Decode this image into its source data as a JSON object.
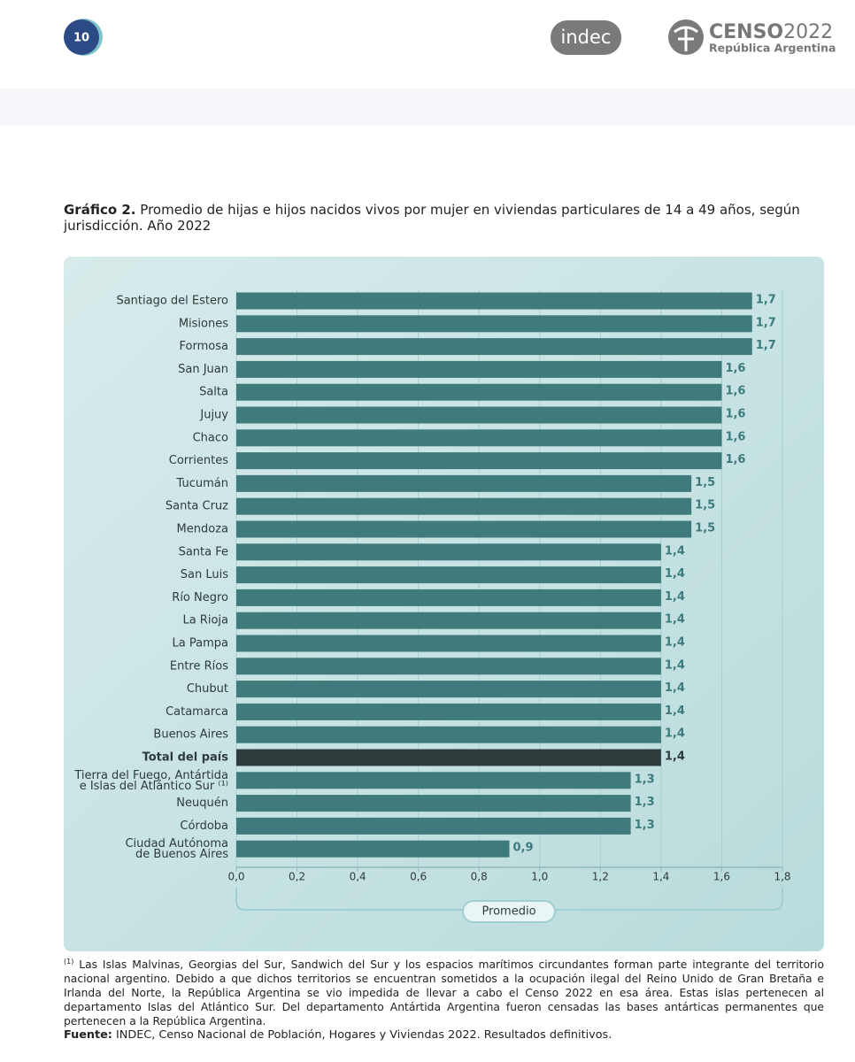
{
  "header": {
    "page_number": "10",
    "logo_indec": "indec",
    "logo_censo": "CENSO",
    "logo_year": "2022",
    "logo_country": "República Argentina"
  },
  "chart_data": {
    "type": "bar",
    "orientation": "horizontal",
    "title_label": "Gráfico 2.",
    "title": "Promedio de hijas e hijos nacidos vivos por mujer en viviendas particulares de 14 a 49 años, según jurisdicción. Año 2022",
    "categories": [
      "Santiago del Estero",
      "Misiones",
      "Formosa",
      "San Juan",
      "Salta",
      "Jujuy",
      "Chaco",
      "Corrientes",
      "Tucumán",
      "Santa Cruz",
      "Mendoza",
      "Santa Fe",
      "San Luis",
      "Río Negro",
      "La Rioja",
      "La Pampa",
      "Entre Ríos",
      "Chubut",
      "Catamarca",
      "Buenos Aires",
      "Total del país",
      "Tierra del Fuego, Antártida\ne Islas del Atlántico Sur ⁽¹⁾",
      "Neuquén",
      "Córdoba",
      "Ciudad Autónoma\nde Buenos Aires"
    ],
    "values": [
      1.7,
      1.7,
      1.7,
      1.6,
      1.6,
      1.6,
      1.6,
      1.6,
      1.5,
      1.5,
      1.5,
      1.4,
      1.4,
      1.4,
      1.4,
      1.4,
      1.4,
      1.4,
      1.4,
      1.4,
      1.4,
      1.3,
      1.3,
      1.3,
      0.9
    ],
    "value_labels": [
      "1,7",
      "1,7",
      "1,7",
      "1,6",
      "1,6",
      "1,6",
      "1,6",
      "1,6",
      "1,5",
      "1,5",
      "1,5",
      "1,4",
      "1,4",
      "1,4",
      "1,4",
      "1,4",
      "1,4",
      "1,4",
      "1,4",
      "1,4",
      "1,4",
      "1,3",
      "1,3",
      "1,3",
      "0,9"
    ],
    "colors": [
      "#3f7a7c",
      "#3f7a7c",
      "#3f7a7c",
      "#3f7a7c",
      "#3f7a7c",
      "#3f7a7c",
      "#3f7a7c",
      "#3f7a7c",
      "#3f7a7c",
      "#3f7a7c",
      "#3f7a7c",
      "#3f7a7c",
      "#3f7a7c",
      "#3f7a7c",
      "#3f7a7c",
      "#3f7a7c",
      "#3f7a7c",
      "#3f7a7c",
      "#3f7a7c",
      "#3f7a7c",
      "#2d3b3d",
      "#3f7a7c",
      "#3f7a7c",
      "#3f7a7c",
      "#3f7a7c"
    ],
    "xlim": [
      0,
      1.8
    ],
    "xticks": [
      {
        "value": 0,
        "label": "0,0"
      },
      {
        "value": 0.2,
        "label": "0,2"
      },
      {
        "value": 0.4,
        "label": "0,4"
      },
      {
        "value": 0.6,
        "label": "0,6"
      },
      {
        "value": 0.8,
        "label": "0,8"
      },
      {
        "value": 1.0,
        "label": "1,0"
      },
      {
        "value": 1.2,
        "label": "1,2"
      },
      {
        "value": 1.4,
        "label": "1,4"
      },
      {
        "value": 1.6,
        "label": "1,6"
      },
      {
        "value": 1.8,
        "label": "1,8"
      }
    ],
    "grid": true,
    "annotation": "Promedio"
  },
  "footnote": {
    "marker": "(1)",
    "text": "Las Islas Malvinas, Georgias del Sur, Sandwich del Sur y los espacios marítimos circundantes forman parte integrante del territorio nacional argentino. Debido a que dichos territorios se encuentran sometidos a la ocupación ilegal del Reino Unido de Gran Bretaña e Irlanda del Norte, la República Argentina se vio impedida de llevar a cabo el Censo 2022 en esa área. Estas islas pertenecen al departamento Islas del Atlántico Sur. Del departamento Antártida Argentina fueron censadas las bases antárticas permanentes que pertenecen a la República Argentina."
  },
  "source": {
    "label": "Fuente:",
    "text": "INDEC, Censo Nacional de Población, Hogares y Viviendas 2022. Resultados definitivos."
  }
}
